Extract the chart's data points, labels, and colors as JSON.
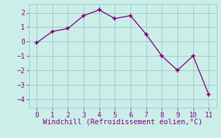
{
  "x": [
    0,
    1,
    2,
    3,
    4,
    5,
    6,
    7,
    8,
    9,
    10,
    11
  ],
  "y": [
    -0.1,
    0.7,
    0.9,
    1.8,
    2.2,
    1.6,
    1.8,
    0.5,
    -1.0,
    -2.0,
    -1.0,
    -3.7
  ],
  "line_color": "#800080",
  "marker": "+",
  "marker_size": 5,
  "marker_linewidth": 1.2,
  "bg_color": "#cceee8",
  "grid_color": "#99cccc",
  "xlabel": "Windchill (Refroidissement éolien,°C)",
  "xlabel_color": "#800080",
  "xlabel_fontsize": 7.5,
  "tick_color": "#800080",
  "tick_fontsize": 7,
  "ylim": [
    -4.6,
    2.6
  ],
  "xlim": [
    -0.5,
    11.5
  ],
  "yticks": [
    -4,
    -3,
    -2,
    -1,
    0,
    1,
    2
  ],
  "xticks": [
    0,
    1,
    2,
    3,
    4,
    5,
    6,
    7,
    8,
    9,
    10,
    11
  ],
  "linewidth": 1.0
}
